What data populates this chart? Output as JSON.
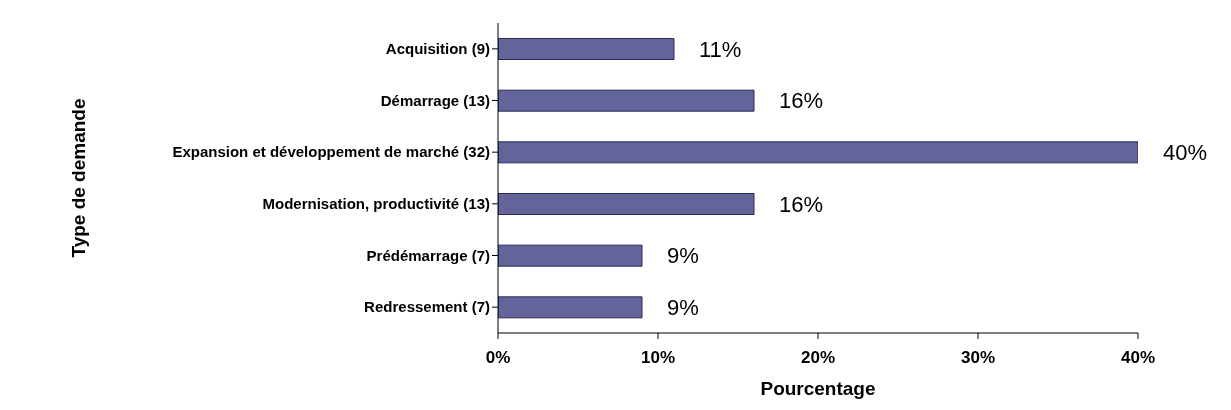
{
  "chart_data": {
    "type": "bar",
    "orientation": "horizontal",
    "xlabel": "Pourcentage",
    "ylabel": "Type de demande",
    "categories": [
      "Acquisition (9)",
      "Démarrage  (13)",
      "Expansion et développement de marché  (32)",
      "Modernisation, productivité (13)",
      "Prédémarrage (7)",
      "Redressement (7)"
    ],
    "values": [
      11,
      16,
      40,
      16,
      9,
      9
    ],
    "value_labels": [
      "11%",
      "16%",
      "40%",
      "16%",
      "9%",
      "9%"
    ],
    "color": "#64649c",
    "xlim": [
      0,
      40
    ],
    "xticks": [
      {
        "value": 0,
        "label": "0%"
      },
      {
        "value": 10,
        "label": "10%"
      },
      {
        "value": 20,
        "label": "20%"
      },
      {
        "value": 30,
        "label": "30%"
      },
      {
        "value": 40,
        "label": "40%"
      }
    ],
    "grid": false,
    "legend": false
  }
}
